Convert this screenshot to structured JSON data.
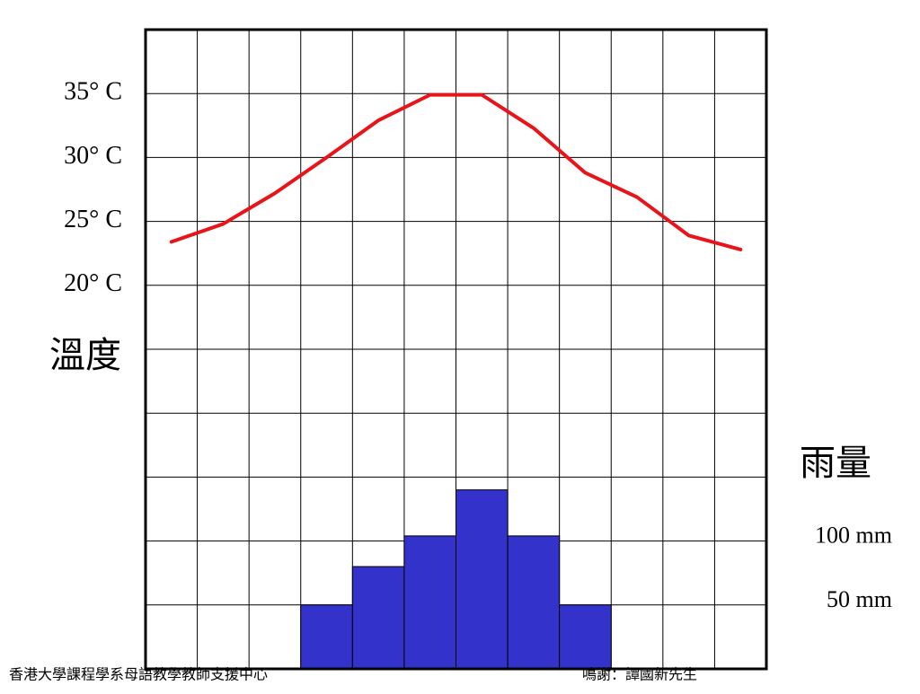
{
  "chart_data": {
    "type": "combo",
    "categories": [
      null,
      null,
      null,
      null,
      null,
      null,
      null,
      null,
      null,
      null,
      null,
      null
    ],
    "ylabel": "溫度",
    "y2label": "雨量",
    "ylim": [
      -10,
      40
    ],
    "yticks": [
      {
        "value": 20,
        "label": "20° C"
      },
      {
        "value": 25,
        "label": "25° C"
      },
      {
        "value": 30,
        "label": "30° C"
      },
      {
        "value": 35,
        "label": "35° C"
      }
    ],
    "y2lim": [
      0,
      500
    ],
    "y2ticks": [
      {
        "value": 50,
        "label": "50 mm"
      },
      {
        "value": 100,
        "label": "100 mm"
      }
    ],
    "grid": true,
    "series": [
      {
        "type": "line",
        "color": "#e8141a",
        "values": [
          23.4,
          24.8,
          27.2,
          30.0,
          32.9,
          34.9,
          34.9,
          32.3,
          28.8,
          26.9,
          23.9,
          22.8
        ]
      },
      {
        "type": "bar",
        "axis": "y2",
        "color": "#3333cc",
        "values": [
          0,
          0,
          0,
          50,
          80,
          104,
          140,
          104,
          50,
          0,
          0,
          0
        ]
      }
    ]
  },
  "footer": {
    "left": "香港大學課程學系母語教學教師支援中心",
    "right": "鳴謝：譚國新先生"
  }
}
